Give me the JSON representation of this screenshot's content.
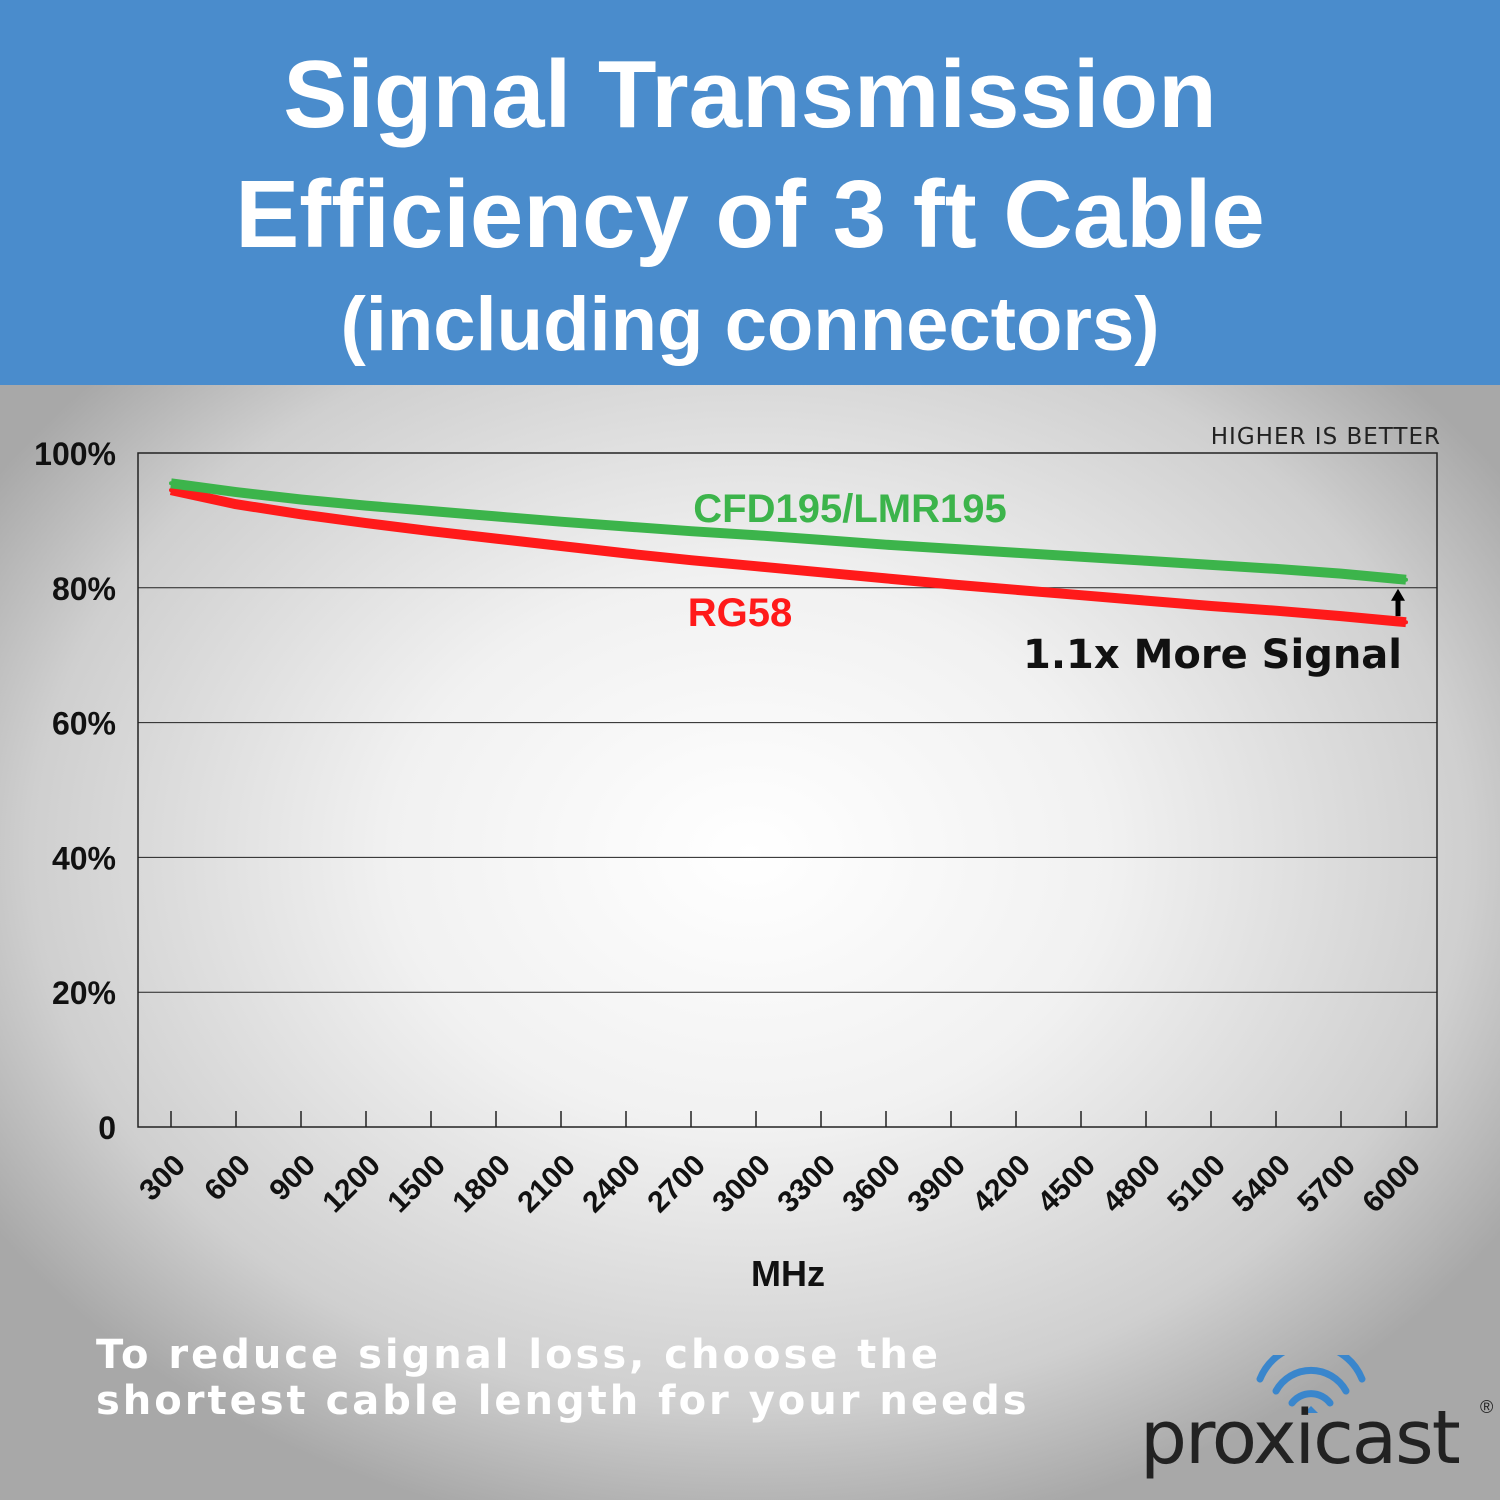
{
  "header": {
    "line1": "Signal Transmission",
    "line2": "Efficiency of 3 ft Cable",
    "line3": "(including connectors)"
  },
  "chart_data": {
    "type": "line",
    "title": "Signal Transmission Efficiency of 3 ft Cable (including connectors)",
    "xlabel": "MHz",
    "ylabel": "",
    "note": "HIGHER IS BETTER",
    "x": [
      300,
      600,
      900,
      1200,
      1500,
      1800,
      2100,
      2400,
      2700,
      3000,
      3300,
      3600,
      3900,
      4200,
      4500,
      4800,
      5100,
      5400,
      5700,
      6000
    ],
    "ylim": [
      0,
      100
    ],
    "y_ticks": [
      0,
      20,
      40,
      60,
      80,
      100
    ],
    "y_tick_labels": [
      "0",
      "20%",
      "40%",
      "60%",
      "80%",
      "100%"
    ],
    "series": [
      {
        "name": "CFD195/LMR195",
        "color": "#3cb44b",
        "values": [
          95.5,
          94.2,
          93.1,
          92.2,
          91.4,
          90.6,
          89.8,
          89.1,
          88.4,
          87.8,
          87.1,
          86.4,
          85.8,
          85.2,
          84.6,
          84.0,
          83.4,
          82.8,
          82.1,
          81.2
        ]
      },
      {
        "name": "RG58",
        "color": "#ff1a1a",
        "values": [
          94.5,
          92.4,
          90.9,
          89.6,
          88.4,
          87.3,
          86.2,
          85.1,
          84.1,
          83.2,
          82.3,
          81.4,
          80.5,
          79.7,
          78.9,
          78.1,
          77.3,
          76.6,
          75.8,
          74.9
        ]
      }
    ],
    "annotation": {
      "text": "1.1x More Signal",
      "at_x": 6000
    }
  },
  "footer": {
    "line1": "To reduce signal loss, choose the",
    "line2": "shortest cable length for your needs"
  },
  "logo": {
    "text": "proxicast",
    "reg": "®"
  }
}
